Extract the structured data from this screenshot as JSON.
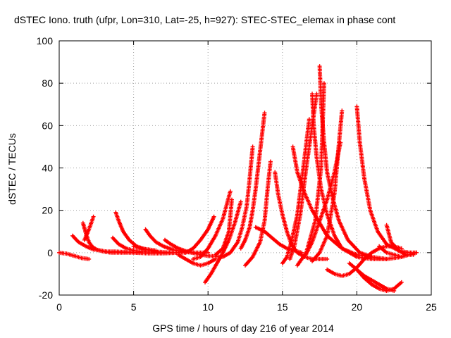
{
  "chart_data": {
    "type": "scatter",
    "title": "dSTEC Iono. truth (ufpr, Lon=310, Lat=-25, h=927): STEC-STEC_elemax in phase cont",
    "xlabel": "GPS time / hours of day 216 of year 2014",
    "ylabel": "dSTEC  / TECUs",
    "xlim": [
      0,
      25
    ],
    "ylim": [
      -20,
      100
    ],
    "xticks": [
      0,
      5,
      10,
      15,
      20,
      25
    ],
    "yticks": [
      -20,
      0,
      20,
      40,
      60,
      80,
      100
    ],
    "grid": true,
    "marker": "+",
    "color": "#ff0000",
    "series": [
      {
        "x": [
          0,
          0.5,
          1.0,
          1.5,
          2.0
        ],
        "y": [
          0,
          -0.5,
          -1.5,
          -2.5,
          -3.0
        ]
      },
      {
        "x": [
          0.9,
          1.3,
          1.8,
          2.3,
          2.8,
          3.2,
          3.8,
          4.5,
          5.5
        ],
        "y": [
          8,
          5,
          3,
          1.5,
          1,
          0.5,
          0.5,
          0.3,
          0
        ]
      },
      {
        "x": [
          1.6,
          1.8,
          2.0,
          2.2,
          2.5,
          3.0,
          3.5,
          4.0,
          5.0,
          6.0,
          7.0,
          8.0
        ],
        "y": [
          14,
          9,
          5,
          3,
          1.5,
          0.5,
          0,
          0,
          0,
          -0.3,
          -0.3,
          0
        ]
      },
      {
        "x": [
          2.3,
          2.0,
          1.7
        ],
        "y": [
          17,
          11,
          6
        ]
      },
      {
        "x": [
          3.8,
          4.0,
          4.3,
          4.7,
          5.2,
          5.8,
          6.5,
          7.5,
          8.5
        ],
        "y": [
          19,
          15,
          10,
          6,
          3,
          1.5,
          0.5,
          0,
          0
        ]
      },
      {
        "x": [
          3.6,
          4.0,
          4.5,
          5.0,
          5.5,
          6.0,
          7.0
        ],
        "y": [
          7,
          4,
          2,
          1,
          0.5,
          0.3,
          0
        ]
      },
      {
        "x": [
          5.8,
          6.1,
          6.5,
          7.0,
          7.6,
          8.2,
          9.0,
          10.0
        ],
        "y": [
          11,
          8,
          5,
          3,
          1.5,
          0.5,
          0,
          0
        ]
      },
      {
        "x": [
          5.0,
          5.5,
          6.0,
          6.5
        ],
        "y": [
          3,
          2,
          1.5,
          1
        ]
      },
      {
        "x": [
          7.1,
          7.5,
          8.0,
          8.6,
          9.2,
          10.0,
          11.0
        ],
        "y": [
          6,
          4,
          2,
          0.5,
          -0.5,
          -1.5,
          -2
        ]
      },
      {
        "x": [
          8.0,
          8.5,
          9.0,
          9.5,
          10.0,
          10.5
        ],
        "y": [
          -1,
          -3,
          -5,
          -6,
          -5,
          -3
        ]
      },
      {
        "x": [
          8.5,
          9.0,
          9.5,
          10.0,
          10.4
        ],
        "y": [
          0,
          2,
          6,
          11,
          17
        ]
      },
      {
        "x": [
          9.0,
          9.5,
          10.0,
          10.5,
          11.0,
          11.5
        ],
        "y": [
          -3,
          -2,
          2,
          8,
          16,
          29
        ]
      },
      {
        "x": [
          9.8,
          10.2,
          10.6,
          11.0,
          11.4,
          11.8,
          12.2
        ],
        "y": [
          -14,
          -10,
          -5,
          0,
          6,
          14,
          24
        ]
      },
      {
        "x": [
          10.5,
          11.0,
          11.4,
          11.6
        ],
        "y": [
          -1,
          2,
          10,
          25
        ]
      },
      {
        "x": [
          11.0,
          11.5,
          12.0,
          12.3,
          12.6,
          12.8,
          13.0
        ],
        "y": [
          -2,
          0,
          5,
          12,
          22,
          35,
          50
        ]
      },
      {
        "x": [
          12.2,
          12.5,
          12.8,
          13.0,
          13.2,
          13.4,
          13.6,
          13.8
        ],
        "y": [
          2,
          6,
          12,
          20,
          30,
          42,
          54,
          66
        ]
      },
      {
        "x": [
          12.5,
          13.0,
          13.5,
          13.8,
          14.0,
          14.2
        ],
        "y": [
          -6,
          -2,
          5,
          15,
          30,
          43
        ]
      },
      {
        "x": [
          13.2,
          13.8,
          14.3,
          14.8,
          15.3,
          15.8,
          16.3
        ],
        "y": [
          12,
          10,
          7,
          4,
          2,
          1,
          0
        ]
      },
      {
        "x": [
          14.5,
          14.7,
          15.0,
          15.3,
          15.6,
          16.0,
          16.5,
          17.0,
          18.0
        ],
        "y": [
          38,
          28,
          18,
          10,
          4,
          0,
          -2,
          -3,
          -3
        ]
      },
      {
        "x": [
          15.0,
          15.3,
          15.6,
          16.0,
          16.4,
          16.8
        ],
        "y": [
          -5,
          -2,
          5,
          18,
          40,
          63
        ]
      },
      {
        "x": [
          15.5,
          15.8,
          16.2,
          16.6,
          17.0,
          17.3
        ],
        "y": [
          -3,
          3,
          18,
          40,
          60,
          75
        ]
      },
      {
        "x": [
          15.7,
          16.0,
          16.5,
          17.0,
          17.5,
          18.0,
          19.0,
          20.0,
          21.0
        ],
        "y": [
          50,
          38,
          28,
          20,
          14,
          8,
          2,
          -1,
          -2
        ]
      },
      {
        "x": [
          17.0,
          17.1,
          17.3,
          17.6,
          18.0,
          18.5,
          19.0,
          20.0,
          21.0,
          22.0
        ],
        "y": [
          75,
          60,
          45,
          30,
          18,
          8,
          2,
          -2,
          -3,
          -3
        ]
      },
      {
        "x": [
          17.5,
          17.6,
          17.8,
          18.0,
          18.4,
          18.8,
          19.4,
          20.2,
          21.0,
          22.0,
          23.0
        ],
        "y": [
          88,
          70,
          52,
          38,
          25,
          15,
          6,
          0,
          -2,
          -3,
          -2
        ]
      },
      {
        "x": [
          16.0,
          16.6,
          17.2,
          17.6,
          17.8
        ],
        "y": [
          -6,
          0,
          15,
          40,
          80
        ]
      },
      {
        "x": [
          16.5,
          17.0,
          17.5,
          18.0,
          18.5,
          18.9
        ],
        "y": [
          -2,
          5,
          15,
          25,
          38,
          52
        ]
      },
      {
        "x": [
          17.0,
          17.5,
          18.0,
          18.5,
          18.8,
          19.0
        ],
        "y": [
          -4,
          0,
          8,
          28,
          52,
          67
        ]
      },
      {
        "x": [
          18.0,
          18.5,
          19.0,
          19.5,
          20.0,
          20.5,
          21.0,
          21.5,
          22.0,
          22.5,
          23.0
        ],
        "y": [
          -8,
          -10,
          -11,
          -10,
          -7,
          -3,
          0,
          2,
          3,
          3,
          2
        ]
      },
      {
        "x": [
          20.0,
          20.2,
          20.5,
          20.9,
          21.4,
          22.0,
          22.8,
          23.5,
          24.0
        ],
        "y": [
          69,
          52,
          35,
          20,
          10,
          4,
          1,
          0,
          0
        ]
      },
      {
        "x": [
          20.0,
          20.5,
          21.0,
          21.5,
          22.0,
          22.5,
          23.0
        ],
        "y": [
          -8,
          -12,
          -15,
          -17,
          -18,
          -17,
          -14
        ]
      },
      {
        "x": [
          19.5,
          20.0,
          20.5,
          21.0,
          21.5,
          22.0,
          22.5
        ],
        "y": [
          -5,
          -8,
          -11,
          -13,
          -15,
          -17,
          -18
        ]
      },
      {
        "x": [
          22.0,
          22.3,
          22.8,
          23.3,
          23.8
        ],
        "y": [
          13,
          5,
          1,
          -1,
          -1
        ]
      },
      {
        "x": [
          21.5,
          22.0,
          22.5,
          23.0,
          23.5,
          24.0
        ],
        "y": [
          3,
          0,
          -1,
          -2,
          -1,
          0
        ]
      }
    ]
  }
}
